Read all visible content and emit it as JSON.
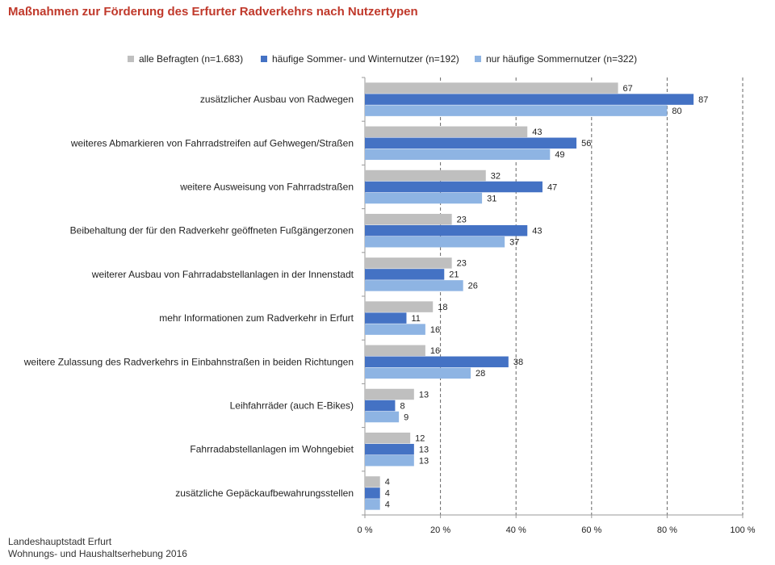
{
  "title": "Maßnahmen zur Förderung des Erfurter Radverkehrs nach Nutzertypen",
  "colors": {
    "title": "#c0392b",
    "series": [
      "#bfbfbf",
      "#4472c4",
      "#8eb4e3"
    ],
    "axis": "#999999",
    "grid": "#666666"
  },
  "source": {
    "line1": "Landeshauptstadt Erfurt",
    "line2": "Wohnungs- und Haushaltserhebung 2016"
  },
  "chart_data": {
    "type": "bar",
    "orientation": "horizontal",
    "title": "Maßnahmen zur Förderung des Erfurter Radverkehrs nach Nutzertypen",
    "categories": [
      "zusätzlicher Ausbau von Radwegen",
      "weiteres Abmarkieren von Fahrradstreifen auf Gehwegen/Straßen",
      "weitere Ausweisung von Fahrradstraßen",
      "Beibehaltung der für den Radverkehr geöffneten Fußgängerzonen",
      "weiterer Ausbau von Fahrradabstellanlagen in der Innenstadt",
      "mehr Informationen zum Radverkehr in Erfurt",
      "weitere Zulassung des Radverkehrs in Einbahnstraßen in beiden Richtungen",
      "Leihfahrräder (auch E-Bikes)",
      "Fahrradabstellanlagen im Wohngebiet",
      "zusätzliche Gepäckaufbewahrungsstellen"
    ],
    "series": [
      {
        "name": "alle Befragten (n=1.683)",
        "values": [
          67,
          43,
          32,
          23,
          23,
          18,
          16,
          13,
          12,
          4
        ]
      },
      {
        "name": "häufige Sommer- und Winternutzer (n=192)",
        "values": [
          87,
          56,
          47,
          43,
          21,
          11,
          38,
          8,
          13,
          4
        ]
      },
      {
        "name": "nur häufige Sommernutzer (n=322)",
        "values": [
          80,
          49,
          31,
          37,
          26,
          16,
          28,
          9,
          13,
          4
        ]
      }
    ],
    "xlim": [
      0,
      100
    ],
    "xticks": [
      "0 %",
      "20 %",
      "40 %",
      "60 %",
      "80 %",
      "100 %"
    ],
    "grid": true,
    "legend_position": "top"
  }
}
